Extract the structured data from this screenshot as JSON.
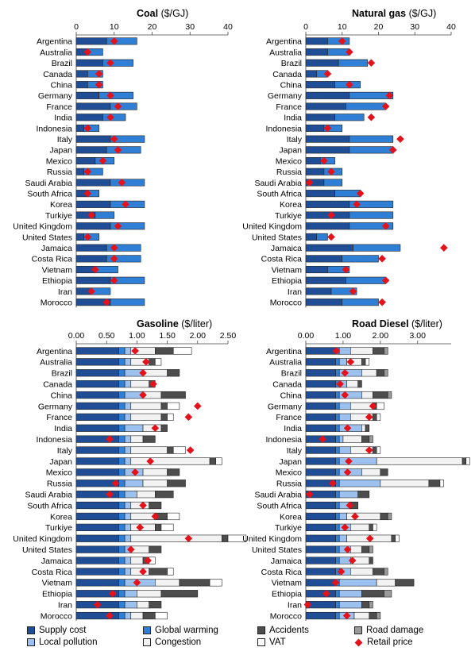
{
  "chart_data": [
    {
      "type": "bar",
      "title": "Coal",
      "unit": "($/GJ)",
      "xlim": [
        0,
        40
      ],
      "ticks": [
        "0",
        "10",
        "20",
        "30",
        "40"
      ],
      "categories": [
        "Argentina",
        "Australia",
        "Brazil",
        "Canada",
        "China",
        "Germany",
        "France",
        "India",
        "Indonesia",
        "Italy",
        "Japan",
        "Mexico",
        "Russia",
        "Saudi Arabia",
        "South Africa",
        "Korea",
        "Turkiye",
        "United Kingdom",
        "United States",
        "Jamaica",
        "Costa Rica",
        "Vietnam",
        "Ethiopia",
        "Iran",
        "Morocco"
      ],
      "series": [
        {
          "name": "Supply cost",
          "values": [
            8,
            3,
            7,
            3,
            3,
            6,
            9,
            7,
            2,
            9,
            8,
            5,
            2,
            9,
            3,
            9,
            5,
            9,
            2,
            8,
            8,
            5,
            9,
            4,
            9
          ]
        },
        {
          "name": "Global warming",
          "values": [
            8,
            4,
            8,
            4,
            4,
            9,
            7,
            6,
            4,
            9,
            9,
            5,
            5,
            9,
            3,
            9,
            5,
            9,
            4,
            9,
            9,
            6,
            9,
            5,
            9
          ]
        },
        {
          "name": "Local pollution",
          "values": [
            0,
            0,
            0,
            0,
            0,
            0,
            0,
            0,
            0,
            0,
            0,
            0,
            0,
            0,
            0,
            0,
            0,
            0,
            0,
            0,
            0,
            0,
            0,
            0,
            0
          ]
        },
        {
          "name": "Congestion",
          "values": [
            0,
            0,
            0,
            0,
            0,
            0,
            0,
            0,
            0,
            0,
            0,
            0,
            0,
            0,
            0,
            0,
            0,
            0,
            0,
            0,
            0,
            0,
            0,
            0,
            0
          ]
        },
        {
          "name": "Accidents",
          "values": [
            0,
            0,
            0,
            0,
            0,
            0,
            0,
            0,
            0,
            0,
            0,
            0,
            0,
            0,
            0,
            0,
            0,
            0,
            0,
            0,
            0,
            0,
            0,
            0,
            0
          ]
        },
        {
          "name": "Road damage",
          "values": [
            0,
            0,
            0,
            0,
            0,
            0,
            0,
            0,
            0,
            0,
            0,
            0,
            0,
            0,
            0,
            0,
            0,
            0,
            0,
            0,
            0,
            0,
            0,
            0,
            0
          ]
        },
        {
          "name": "VAT",
          "values": [
            0,
            0,
            0,
            0,
            0,
            0,
            0,
            0,
            0,
            0,
            0,
            0,
            0,
            0,
            0,
            0,
            0,
            0,
            0,
            0,
            0,
            0,
            0,
            0,
            0
          ]
        }
      ],
      "retail_price": [
        10,
        3,
        9,
        6,
        6,
        9,
        11,
        9,
        3,
        10,
        11,
        7,
        3,
        12,
        3,
        13,
        4,
        11,
        3,
        10,
        10,
        5,
        10,
        4,
        8
      ]
    },
    {
      "type": "bar",
      "title": "Natural gas",
      "unit": "($/GJ)",
      "xlim": [
        0,
        40
      ],
      "ticks": [
        "0",
        "10",
        "20",
        "30",
        "40"
      ],
      "categories": [
        "Argentina",
        "Australia",
        "Brazil",
        "Canada",
        "China",
        "Germany",
        "France",
        "India",
        "Indonesia",
        "Italy",
        "Japan",
        "Mexico",
        "Russia",
        "Saudi Arabia",
        "South Africa",
        "Korea",
        "Turkiye",
        "United Kingdom",
        "United States",
        "Jamaica",
        "Costa Rica",
        "Vietnam",
        "Ethiopia",
        "Iran",
        "Morocco"
      ],
      "series": [
        {
          "name": "Supply cost",
          "values": [
            6,
            6,
            9,
            3,
            8,
            12,
            11,
            8,
            5,
            12,
            12,
            4,
            5,
            5,
            8,
            12,
            12,
            12,
            3,
            13,
            10,
            6,
            11,
            7,
            10
          ]
        },
        {
          "name": "Global warming",
          "values": [
            6,
            6,
            8,
            3,
            7,
            12,
            11,
            8,
            5,
            12,
            12,
            4,
            5,
            5,
            7,
            12,
            12,
            12,
            3,
            13,
            10,
            6,
            11,
            7,
            10
          ]
        },
        {
          "name": "Local pollution",
          "values": [
            0,
            0,
            0,
            0,
            0,
            0,
            0,
            0,
            0,
            0,
            0,
            0,
            0,
            0,
            0,
            0,
            0,
            0,
            0,
            0,
            0,
            0,
            0,
            0,
            0
          ]
        },
        {
          "name": "Congestion",
          "values": [
            0,
            0,
            0,
            0,
            0,
            0,
            0,
            0,
            0,
            0,
            0,
            0,
            0,
            0,
            0,
            0,
            0,
            0,
            0,
            0,
            0,
            0,
            0,
            0,
            0
          ]
        },
        {
          "name": "Accidents",
          "values": [
            0,
            0,
            0,
            0,
            0,
            0,
            0,
            0,
            0,
            0,
            0,
            0,
            0,
            0,
            0,
            0,
            0,
            0,
            0,
            0,
            0,
            0,
            0,
            0,
            0
          ]
        },
        {
          "name": "Road damage",
          "values": [
            0,
            0,
            0,
            0,
            0,
            0,
            0,
            0,
            0,
            0,
            0,
            0,
            0,
            0,
            0,
            0,
            0,
            0,
            0,
            0,
            0,
            0,
            0,
            0,
            0
          ]
        },
        {
          "name": "VAT",
          "values": [
            0,
            0,
            0,
            0,
            0,
            0,
            0,
            0,
            0,
            0,
            0,
            0,
            0,
            0,
            0,
            0,
            0,
            0,
            0,
            0,
            0,
            0,
            0,
            0,
            0
          ]
        }
      ],
      "retail_price": [
        10,
        12,
        18,
        6,
        12,
        23,
        22,
        18,
        6,
        26,
        24,
        5,
        7,
        1,
        15,
        14,
        7,
        22,
        7,
        38,
        21,
        11,
        22,
        13,
        21
      ]
    },
    {
      "type": "bar",
      "title": "Gasoline",
      "unit": "($/liter)",
      "xlim": [
        0,
        2.5
      ],
      "ticks": [
        "0.00",
        "0.50",
        "1.00",
        "1.50",
        "2.00",
        "2.50"
      ],
      "categories": [
        "Argentina",
        "Australia",
        "Brazil",
        "Canada",
        "China",
        "Germany",
        "France",
        "India",
        "Indonesia",
        "Italy",
        "Japan",
        "Mexico",
        "Russia",
        "Saudi Arabia",
        "South Africa",
        "Korea",
        "Turkiye",
        "United Kingdom",
        "United States",
        "Jamaica",
        "Costa Rica",
        "Vietnam",
        "Ethiopia",
        "Iran",
        "Morocco"
      ],
      "series": [
        {
          "name": "Supply cost",
          "values": [
            0.7,
            0.7,
            0.7,
            0.7,
            0.7,
            0.7,
            0.7,
            0.7,
            0.7,
            0.7,
            0.7,
            0.7,
            0.7,
            0.7,
            0.7,
            0.7,
            0.7,
            0.7,
            0.7,
            0.7,
            0.7,
            0.7,
            0.7,
            0.7,
            0.7
          ]
        },
        {
          "name": "Global warming",
          "values": [
            0.1,
            0.1,
            0.1,
            0.1,
            0.1,
            0.1,
            0.1,
            0.1,
            0.1,
            0.1,
            0.1,
            0.1,
            0.1,
            0.1,
            0.1,
            0.1,
            0.1,
            0.1,
            0.1,
            0.1,
            0.1,
            0.1,
            0.1,
            0.1,
            0.1
          ]
        },
        {
          "name": "Local pollution",
          "values": [
            0.1,
            0.1,
            0.3,
            0.1,
            0.3,
            0.1,
            0.1,
            0.3,
            0.1,
            0.1,
            0.1,
            0.3,
            0.3,
            0.2,
            0.1,
            0.1,
            0.1,
            0.1,
            0.1,
            0.1,
            0.1,
            0.5,
            0.2,
            0.2,
            0.1
          ]
        },
        {
          "name": "Congestion",
          "values": [
            0.4,
            0.3,
            0.4,
            0.3,
            0.3,
            0.5,
            0.5,
            0.3,
            0.2,
            0.6,
            1.3,
            0.4,
            0.4,
            0.3,
            0.3,
            0.4,
            0.4,
            1.5,
            0.3,
            0.2,
            0.3,
            0.4,
            0.4,
            0.2,
            0.2
          ]
        },
        {
          "name": "Accidents",
          "values": [
            0.3,
            0.1,
            0.2,
            0.1,
            0.4,
            0.1,
            0.1,
            0.1,
            0.2,
            0.1,
            0.1,
            0.2,
            0.3,
            0.3,
            0.2,
            0.2,
            0.1,
            0.1,
            0.2,
            0.1,
            0.3,
            0.5,
            0.6,
            0.2,
            0.2
          ]
        },
        {
          "name": "Road damage",
          "values": [
            0.0,
            0.0,
            0.0,
            0.0,
            0.0,
            0.0,
            0.0,
            0.0,
            0.0,
            0.0,
            0.0,
            0.0,
            0.0,
            0.0,
            0.0,
            0.0,
            0.0,
            0.0,
            0.0,
            0.0,
            0.0,
            0.0,
            0.0,
            0.0,
            0.0
          ]
        },
        {
          "name": "VAT",
          "values": [
            0.3,
            0.1,
            0.0,
            0.0,
            0.0,
            0.2,
            0.1,
            0.0,
            0.0,
            0.2,
            0.1,
            0.0,
            0.0,
            0.0,
            0.0,
            0.2,
            0.2,
            0.3,
            0.0,
            0.1,
            0.1,
            0.2,
            0.0,
            0.0,
            0.2
          ]
        }
      ],
      "retail_price": [
        0.97,
        1.15,
        1.1,
        1.27,
        1.1,
        2.0,
        1.85,
        1.3,
        0.55,
        1.88,
        1.22,
        0.97,
        0.65,
        0.55,
        1.1,
        1.3,
        1.05,
        1.85,
        0.9,
        1.18,
        1.1,
        1.0,
        0.6,
        0.35,
        0.55
      ]
    },
    {
      "type": "bar",
      "title": "Road Diesel",
      "unit": "($/liter)",
      "xlim": [
        0,
        3.9
      ],
      "ticks": [
        "0.00",
        "1.00",
        "2.00",
        "3.00"
      ],
      "categories": [
        "Argentina",
        "Australia",
        "Brazil",
        "Canada",
        "China",
        "Germany",
        "France",
        "India",
        "Indonesia",
        "Italy",
        "Japan",
        "Mexico",
        "Russia",
        "Saudi Arabia",
        "South Africa",
        "Korea",
        "Turkiye",
        "United Kingdom",
        "United States",
        "Jamaica",
        "Costa Rica",
        "Vietnam",
        "Ethiopia",
        "Iran",
        "Morocco"
      ],
      "series": [
        {
          "name": "Supply cost",
          "values": [
            0.8,
            0.8,
            0.8,
            0.8,
            0.8,
            0.8,
            0.8,
            0.8,
            0.8,
            0.8,
            0.8,
            0.8,
            0.8,
            0.8,
            0.8,
            0.8,
            0.8,
            0.8,
            0.8,
            0.8,
            0.8,
            0.8,
            0.8,
            0.8,
            0.8
          ]
        },
        {
          "name": "Global warming",
          "values": [
            0.1,
            0.1,
            0.1,
            0.1,
            0.1,
            0.1,
            0.1,
            0.1,
            0.1,
            0.1,
            0.1,
            0.1,
            0.1,
            0.1,
            0.1,
            0.1,
            0.1,
            0.1,
            0.1,
            0.1,
            0.1,
            0.1,
            0.1,
            0.1,
            0.1
          ]
        },
        {
          "name": "Local pollution",
          "values": [
            0.3,
            0.2,
            0.6,
            0.2,
            0.6,
            0.3,
            0.3,
            0.6,
            0.1,
            0.3,
            1.0,
            0.6,
            1.1,
            0.5,
            0.3,
            0.2,
            0.3,
            0.2,
            0.3,
            0.3,
            0.3,
            1.0,
            0.6,
            0.6,
            0.4
          ]
        },
        {
          "name": "Congestion",
          "values": [
            0.6,
            0.4,
            0.4,
            0.3,
            0.3,
            0.6,
            0.6,
            0.1,
            0.5,
            0.6,
            2.3,
            0.5,
            1.3,
            0.0,
            0.0,
            0.9,
            0.5,
            1.2,
            0.3,
            0.5,
            0.6,
            0.5,
            0.0,
            0.0,
            0.4
          ]
        },
        {
          "name": "Accidents",
          "values": [
            0.3,
            0.1,
            0.2,
            0.1,
            0.4,
            0.1,
            0.1,
            0.1,
            0.2,
            0.1,
            0.1,
            0.2,
            0.3,
            0.3,
            0.2,
            0.2,
            0.1,
            0.1,
            0.2,
            0.1,
            0.3,
            0.5,
            0.6,
            0.2,
            0.2
          ]
        },
        {
          "name": "Road damage",
          "values": [
            0.1,
            0.0,
            0.1,
            0.0,
            0.1,
            0.0,
            0.0,
            0.0,
            0.1,
            0.0,
            0.0,
            0.0,
            0.0,
            0.0,
            0.0,
            0.1,
            0.0,
            0.0,
            0.1,
            0.0,
            0.1,
            0.0,
            0.2,
            0.1,
            0.1
          ]
        },
        {
          "name": "VAT",
          "values": [
            0.0,
            0.1,
            0.0,
            0.0,
            0.0,
            0.2,
            0.1,
            0.0,
            0.0,
            0.1,
            0.1,
            0.0,
            0.1,
            0.0,
            0.0,
            0.0,
            0.1,
            0.1,
            0.0,
            0.0,
            0.0,
            0.0,
            0.0,
            0.0,
            0.0
          ]
        }
      ],
      "retail_price": [
        0.82,
        1.2,
        1.05,
        0.92,
        1.05,
        1.8,
        1.7,
        1.12,
        0.45,
        1.7,
        1.15,
        1.12,
        0.72,
        0.1,
        1.18,
        1.32,
        1.05,
        1.72,
        1.12,
        1.25,
        0.95,
        0.8,
        0.55,
        0.05,
        1.1
      ]
    }
  ],
  "legend": [
    {
      "label": "Supply cost",
      "color": "#1f4e96",
      "kind": "box"
    },
    {
      "label": "Global warming",
      "color": "#2f7fd6",
      "kind": "box"
    },
    {
      "label": "Local pollution",
      "color": "#9dc1ee",
      "kind": "box"
    },
    {
      "label": "Congestion",
      "color": "#f2f2f2",
      "kind": "box"
    },
    {
      "label": "Accidents",
      "color": "#4d4d4d",
      "kind": "box"
    },
    {
      "label": "Road damage",
      "color": "#9a9a9a",
      "kind": "box"
    },
    {
      "label": "VAT",
      "color": "#ffffff",
      "kind": "box"
    },
    {
      "label": "Retail price",
      "color": "#e3121b",
      "kind": "diamond"
    }
  ]
}
